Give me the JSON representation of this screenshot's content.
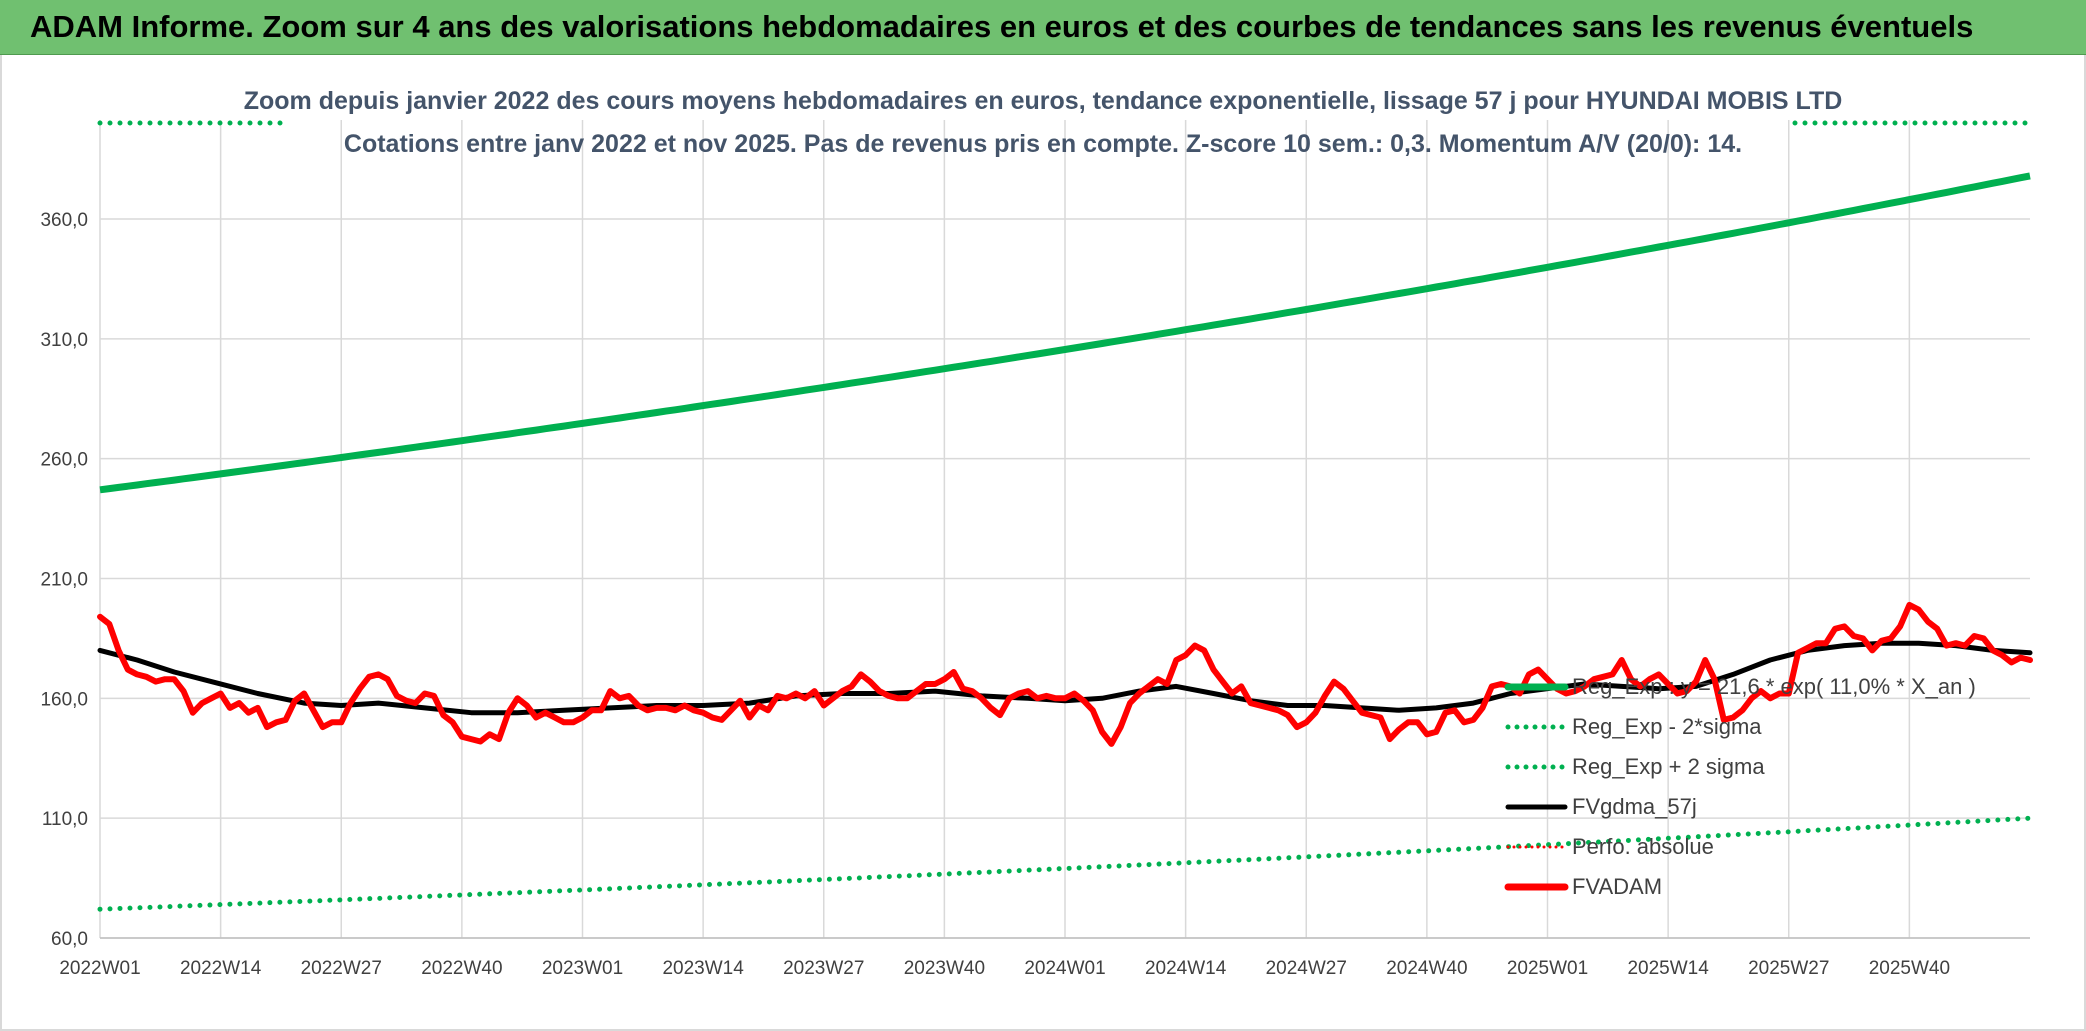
{
  "banner": {
    "title": "ADAM Informe. Zoom sur 4 ans des valorisations hebdomadaires en euros et des courbes de tendances sans les revenus éventuels",
    "color": "#70c070"
  },
  "chart_data": {
    "type": "line",
    "title": "Zoom depuis janvier 2022 des cours moyens hebdomadaires en euros, tendance exponentielle, lissage 57 j pour HYUNDAI MOBIS LTD",
    "subtitle": "Cotations entre janv 2022 et nov 2025. Pas de revenus pris en compte. Z-score 10 sem.: 0,3. Momentum A/V (20/0): 14.",
    "xlabel": "",
    "ylabel": "",
    "ylim": [
      60,
      380
    ],
    "yticks": [
      "60,0",
      "110,0",
      "160,0",
      "210,0",
      "260,0",
      "310,0",
      "360,0"
    ],
    "ytick_values": [
      60,
      110,
      160,
      210,
      260,
      310,
      360
    ],
    "x_tick_labels": [
      "2022W01",
      "2022W14",
      "2022W27",
      "2022W40",
      "2023W01",
      "2023W14",
      "2023W27",
      "2023W40",
      "2024W01",
      "2024W14",
      "2024W27",
      "2024W40",
      "2025W01",
      "2025W14",
      "2025W27",
      "2025W40"
    ],
    "x_tick_index": [
      0,
      13,
      26,
      39,
      52,
      65,
      78,
      91,
      104,
      117,
      130,
      143,
      156,
      169,
      182,
      195
    ],
    "n_weeks": 209,
    "grid": true,
    "legend_position": "bottom-right",
    "series": [
      {
        "name": "Reg_Exp : y = 21,6 * exp( 11,0% *  X_an )",
        "color": "#00b050",
        "style": "solid-thick",
        "start": 247,
        "end": 378
      },
      {
        "name": "Reg_Exp - 2*sigma",
        "color": "#00b050",
        "style": "dotted",
        "start": 72,
        "end": 110
      },
      {
        "name": "Reg_Exp + 2 sigma",
        "color": "#00b050",
        "style": "dotted",
        "start": 395,
        "end": 395
      },
      {
        "name": "FVgdma_57j",
        "color": "#000000",
        "style": "solid",
        "x": [
          0,
          4,
          8,
          12,
          17,
          22,
          26,
          30,
          35,
          40,
          45,
          50,
          55,
          60,
          65,
          70,
          75,
          80,
          85,
          90,
          95,
          100,
          104,
          108,
          112,
          116,
          120,
          124,
          128,
          132,
          136,
          140,
          144,
          148,
          152,
          156,
          160,
          164,
          168,
          172,
          176,
          180,
          184,
          188,
          192,
          196,
          200,
          204,
          208
        ],
        "values": [
          180,
          176,
          171,
          167,
          162,
          158,
          157,
          158,
          156,
          154,
          154,
          155,
          156,
          157,
          157,
          158,
          161,
          162,
          162,
          163,
          161,
          160,
          159,
          160,
          163,
          165,
          162,
          159,
          157,
          157,
          156,
          155,
          156,
          158,
          162,
          164,
          166,
          165,
          164,
          165,
          170,
          176,
          180,
          182,
          183,
          183,
          182,
          180,
          179
        ]
      },
      {
        "name": "Perfo. absolue",
        "color": "#ff0000",
        "style": "dotted-thin",
        "x": [],
        "values": []
      },
      {
        "name": "FVADAM",
        "color": "#ff0000",
        "style": "solid-thick",
        "x": [
          0,
          1,
          2,
          3,
          4,
          5,
          6,
          7,
          8,
          9,
          10,
          11,
          12,
          13,
          14,
          15,
          16,
          17,
          18,
          19,
          20,
          21,
          22,
          23,
          24,
          25,
          26,
          27,
          28,
          29,
          30,
          31,
          32,
          33,
          34,
          35,
          36,
          37,
          38,
          39,
          40,
          41,
          42,
          43,
          44,
          45,
          46,
          47,
          48,
          49,
          50,
          51,
          52,
          53,
          54,
          55,
          56,
          57,
          58,
          59,
          60,
          61,
          62,
          63,
          64,
          65,
          66,
          67,
          68,
          69,
          70,
          71,
          72,
          73,
          74,
          75,
          76,
          77,
          78,
          79,
          80,
          81,
          82,
          83,
          84,
          85,
          86,
          87,
          88,
          89,
          90,
          91,
          92,
          93,
          94,
          95,
          96,
          97,
          98,
          99,
          100,
          101,
          102,
          103,
          104,
          105,
          106,
          107,
          108,
          109,
          110,
          111,
          112,
          113,
          114,
          115,
          116,
          117,
          118,
          119,
          120,
          121,
          122,
          123,
          124,
          125,
          126,
          127,
          128,
          129,
          130,
          131,
          132,
          133,
          134,
          135,
          136,
          137,
          138,
          139,
          140,
          141,
          142,
          143,
          144,
          145,
          146,
          147,
          148,
          149,
          150,
          151,
          152,
          153,
          154,
          155,
          156,
          157,
          158,
          159,
          160,
          161,
          162,
          163,
          164,
          165,
          166,
          167,
          168,
          169,
          170,
          171,
          172,
          173,
          174,
          175,
          176,
          177,
          178,
          179,
          180,
          181,
          182,
          183,
          184,
          185,
          186,
          187,
          188,
          189,
          190,
          191,
          192,
          193,
          194,
          195,
          196,
          197,
          198,
          199,
          200,
          201,
          202,
          203,
          204,
          205,
          206,
          207,
          208
        ],
        "values": [
          194,
          191,
          180,
          172,
          170,
          169,
          167,
          168,
          168,
          163,
          154,
          158,
          160,
          162,
          156,
          158,
          154,
          156,
          148,
          150,
          151,
          159,
          162,
          155,
          148,
          150,
          150,
          158,
          164,
          169,
          170,
          168,
          161,
          159,
          158,
          162,
          161,
          153,
          150,
          144,
          143,
          142,
          145,
          143,
          154,
          160,
          157,
          152,
          154,
          152,
          150,
          150,
          152,
          155,
          155,
          163,
          160,
          161,
          157,
          155,
          156,
          156,
          155,
          157,
          155,
          154,
          152,
          151,
          155,
          159,
          152,
          157,
          155,
          161,
          160,
          162,
          160,
          163,
          157,
          160,
          163,
          165,
          170,
          167,
          163,
          161,
          160,
          160,
          163,
          166,
          166,
          168,
          171,
          164,
          163,
          160,
          156,
          153,
          160,
          162,
          163,
          160,
          161,
          160,
          160,
          162,
          159,
          155,
          146,
          141,
          148,
          158,
          162,
          165,
          168,
          166,
          176,
          178,
          182,
          180,
          172,
          167,
          162,
          165,
          158,
          157,
          156,
          155,
          153,
          148,
          150,
          154,
          161,
          167,
          164,
          159,
          154,
          153,
          152,
          143,
          147,
          150,
          150,
          145,
          146,
          154,
          155,
          150,
          151,
          156,
          165,
          166,
          165,
          162,
          170,
          172,
          168,
          164,
          162,
          163,
          165,
          168,
          169,
          170,
          176,
          168,
          165,
          168,
          170,
          166,
          162,
          163,
          167,
          176,
          168,
          151,
          152,
          155,
          160,
          163,
          160,
          162,
          162,
          179,
          181,
          183,
          183,
          189,
          190,
          186,
          185,
          180,
          184,
          185,
          190,
          199,
          197,
          192,
          189,
          182,
          183,
          182,
          186,
          185,
          180,
          178,
          175,
          177,
          176
        ]
      }
    ]
  }
}
